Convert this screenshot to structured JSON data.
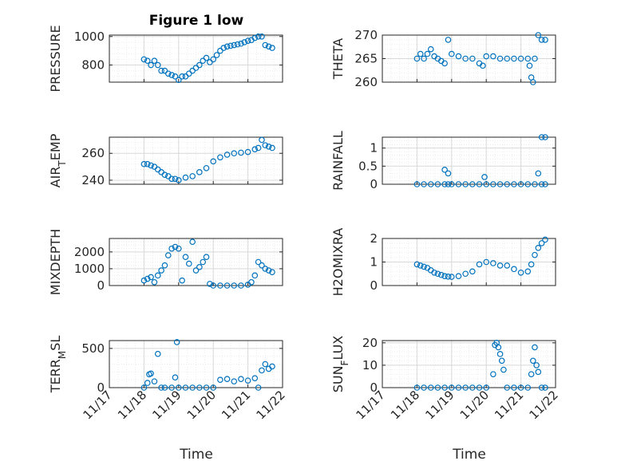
{
  "figure": {
    "title": "Figure 1 low",
    "xlabel_left": "Time",
    "xlabel_right": "Time",
    "marker_color": "#0072bd",
    "x_ticks": [
      "11/17",
      "11/18",
      "11/19",
      "11/20",
      "11/21",
      "11/22"
    ]
  },
  "chart_data": [
    {
      "type": "scatter",
      "name": "PRESSURE",
      "ylabel": "PRESSURE",
      "ylim": [
        680,
        1010
      ],
      "yticks": [
        800,
        1000
      ],
      "ytick_labels": [
        "800",
        "1000"
      ],
      "xlim": [
        17,
        22
      ],
      "x": [
        18.0,
        18.1,
        18.2,
        18.3,
        18.4,
        18.5,
        18.6,
        18.7,
        18.8,
        18.9,
        19.0,
        19.1,
        19.2,
        19.3,
        19.4,
        19.5,
        19.6,
        19.7,
        19.8,
        19.9,
        20.0,
        20.1,
        20.2,
        20.3,
        20.4,
        20.5,
        20.6,
        20.7,
        20.8,
        20.9,
        21.0,
        21.1,
        21.2,
        21.3,
        21.4,
        21.5,
        21.6,
        21.7
      ],
      "y": [
        840,
        830,
        800,
        830,
        800,
        760,
        760,
        740,
        730,
        720,
        695,
        720,
        720,
        740,
        760,
        780,
        800,
        830,
        850,
        820,
        840,
        870,
        900,
        920,
        930,
        935,
        940,
        945,
        950,
        960,
        970,
        975,
        990,
        1000,
        1000,
        940,
        930,
        920
      ]
    },
    {
      "type": "scatter",
      "name": "THETA",
      "ylabel": "THETA",
      "ylim": [
        260,
        270
      ],
      "yticks": [
        260,
        265,
        270
      ],
      "ytick_labels": [
        "260",
        "265",
        "270"
      ],
      "xlim": [
        17,
        22
      ],
      "x": [
        18.0,
        18.1,
        18.2,
        18.3,
        18.4,
        18.5,
        18.6,
        18.7,
        18.8,
        18.9,
        19.0,
        19.2,
        19.4,
        19.6,
        19.8,
        19.9,
        20.0,
        20.2,
        20.4,
        20.6,
        20.8,
        21.0,
        21.2,
        21.25,
        21.3,
        21.35,
        21.4,
        21.5,
        21.6,
        21.7
      ],
      "y": [
        265,
        266,
        265,
        266,
        267,
        265.5,
        265,
        264.5,
        264,
        269,
        266,
        265.5,
        265,
        265,
        264,
        263.5,
        265.5,
        265.5,
        265,
        265,
        265,
        265,
        265,
        263.5,
        261,
        260,
        265,
        270,
        269,
        269
      ]
    },
    {
      "type": "scatter",
      "name": "AIR_TEMP",
      "ylabel": "AIR_TEMP",
      "ylim": [
        237,
        272
      ],
      "yticks": [
        240,
        260
      ],
      "ytick_labels": [
        "240",
        "260"
      ],
      "xlim": [
        17,
        22
      ],
      "x": [
        18.0,
        18.1,
        18.2,
        18.3,
        18.4,
        18.5,
        18.6,
        18.7,
        18.8,
        18.9,
        19.0,
        19.2,
        19.4,
        19.6,
        19.8,
        20.0,
        20.2,
        20.4,
        20.6,
        20.8,
        21.0,
        21.2,
        21.3,
        21.4,
        21.5,
        21.6,
        21.7
      ],
      "y": [
        252,
        252,
        251,
        250,
        248,
        246,
        244,
        243,
        241,
        241,
        240,
        242,
        243,
        246,
        249,
        254,
        257,
        259,
        260,
        260.5,
        261,
        263,
        264,
        270,
        266,
        265,
        264
      ]
    },
    {
      "type": "scatter",
      "name": "RAINFALL",
      "ylabel": "RAINFALL",
      "ylim": [
        0,
        1.3
      ],
      "yticks": [
        0,
        0.5,
        1
      ],
      "ytick_labels": [
        "0",
        "0.5",
        "1"
      ],
      "xlim": [
        17,
        22
      ],
      "x": [
        18.0,
        18.2,
        18.4,
        18.6,
        18.8,
        18.9,
        19.0,
        19.2,
        19.4,
        19.6,
        19.8,
        20.0,
        20.2,
        20.4,
        20.6,
        20.8,
        21.0,
        21.2,
        21.4,
        21.6,
        21.7,
        18.8,
        18.9,
        19.95,
        21.5,
        21.6,
        21.7
      ],
      "y": [
        0,
        0,
        0,
        0,
        0,
        0,
        0,
        0,
        0,
        0,
        0,
        0,
        0,
        0,
        0,
        0,
        0,
        0,
        0,
        0,
        0,
        0.4,
        0.3,
        0.2,
        0.3,
        1.3,
        1.3
      ]
    },
    {
      "type": "scatter",
      "name": "MIXDEPTH",
      "ylabel": "MIXDEPTH",
      "ylim": [
        0,
        2800
      ],
      "yticks": [
        0,
        1000,
        2000
      ],
      "ytick_labels": [
        "0",
        "1000",
        "2000"
      ],
      "xlim": [
        17,
        22
      ],
      "x": [
        18.0,
        18.1,
        18.2,
        18.3,
        18.4,
        18.5,
        18.6,
        18.7,
        18.8,
        18.9,
        19.0,
        19.1,
        19.2,
        19.3,
        19.4,
        19.5,
        19.6,
        19.7,
        19.8,
        19.9,
        20.0,
        20.2,
        20.4,
        20.6,
        20.8,
        21.0,
        21.1,
        21.2,
        21.3,
        21.4,
        21.5,
        21.6,
        21.7
      ],
      "y": [
        300,
        400,
        500,
        200,
        600,
        900,
        1200,
        1800,
        2200,
        2300,
        2200,
        300,
        1700,
        1300,
        2600,
        900,
        1100,
        1400,
        1700,
        100,
        0,
        0,
        0,
        0,
        0,
        50,
        200,
        600,
        1400,
        1200,
        1000,
        900,
        800
      ]
    },
    {
      "type": "scatter",
      "name": "H2OMIXRA",
      "ylabel": "H2OMIXRA",
      "ylim": [
        0,
        2
      ],
      "yticks": [
        0,
        1,
        2
      ],
      "ytick_labels": [
        "0",
        "1",
        "2"
      ],
      "xlim": [
        17,
        22
      ],
      "x": [
        18.0,
        18.1,
        18.2,
        18.3,
        18.4,
        18.5,
        18.6,
        18.7,
        18.8,
        18.9,
        19.0,
        19.2,
        19.4,
        19.6,
        19.8,
        20.0,
        20.2,
        20.4,
        20.6,
        20.8,
        21.0,
        21.2,
        21.3,
        21.4,
        21.5,
        21.6,
        21.7
      ],
      "y": [
        0.9,
        0.85,
        0.8,
        0.75,
        0.65,
        0.55,
        0.5,
        0.45,
        0.4,
        0.38,
        0.37,
        0.4,
        0.5,
        0.6,
        0.9,
        1.0,
        0.95,
        0.85,
        0.85,
        0.7,
        0.55,
        0.6,
        0.9,
        1.3,
        1.6,
        1.8,
        1.95
      ]
    },
    {
      "type": "scatter",
      "name": "TERR_MSL",
      "ylabel": "TERR_MSL",
      "ylim": [
        0,
        600
      ],
      "yticks": [
        0,
        500
      ],
      "ytick_labels": [
        "0",
        "500"
      ],
      "xlim": [
        17,
        22
      ],
      "x": [
        18.0,
        18.1,
        18.15,
        18.2,
        18.3,
        18.4,
        18.5,
        18.6,
        18.8,
        18.9,
        18.95,
        19.0,
        19.2,
        19.4,
        19.6,
        19.8,
        20.0,
        20.2,
        20.4,
        20.6,
        20.8,
        21.0,
        21.2,
        21.3,
        21.4,
        21.5,
        21.6,
        21.7
      ],
      "y": [
        0,
        60,
        170,
        180,
        80,
        430,
        0,
        0,
        0,
        130,
        580,
        0,
        0,
        0,
        0,
        0,
        0,
        100,
        110,
        80,
        110,
        90,
        120,
        0,
        220,
        300,
        240,
        270
      ]
    },
    {
      "type": "scatter",
      "name": "SUN_FLUX",
      "ylabel": "SUN_FLUX",
      "ylim": [
        0,
        21
      ],
      "yticks": [
        0,
        10,
        20
      ],
      "ytick_labels": [
        "0",
        "10",
        "20"
      ],
      "xlim": [
        17,
        22
      ],
      "x": [
        18.0,
        18.2,
        18.4,
        18.6,
        18.8,
        19.0,
        19.2,
        19.4,
        19.6,
        19.8,
        20.0,
        20.2,
        20.25,
        20.3,
        20.35,
        20.4,
        20.45,
        20.5,
        20.6,
        20.8,
        21.0,
        21.2,
        21.3,
        21.35,
        21.4,
        21.45,
        21.5,
        21.6,
        21.7
      ],
      "y": [
        0,
        0,
        0,
        0,
        0,
        0,
        0,
        0,
        0,
        0,
        0,
        6,
        19,
        20,
        18,
        15,
        12,
        8,
        0,
        0,
        0,
        0,
        6,
        12,
        18,
        10,
        7,
        0,
        0
      ]
    }
  ]
}
